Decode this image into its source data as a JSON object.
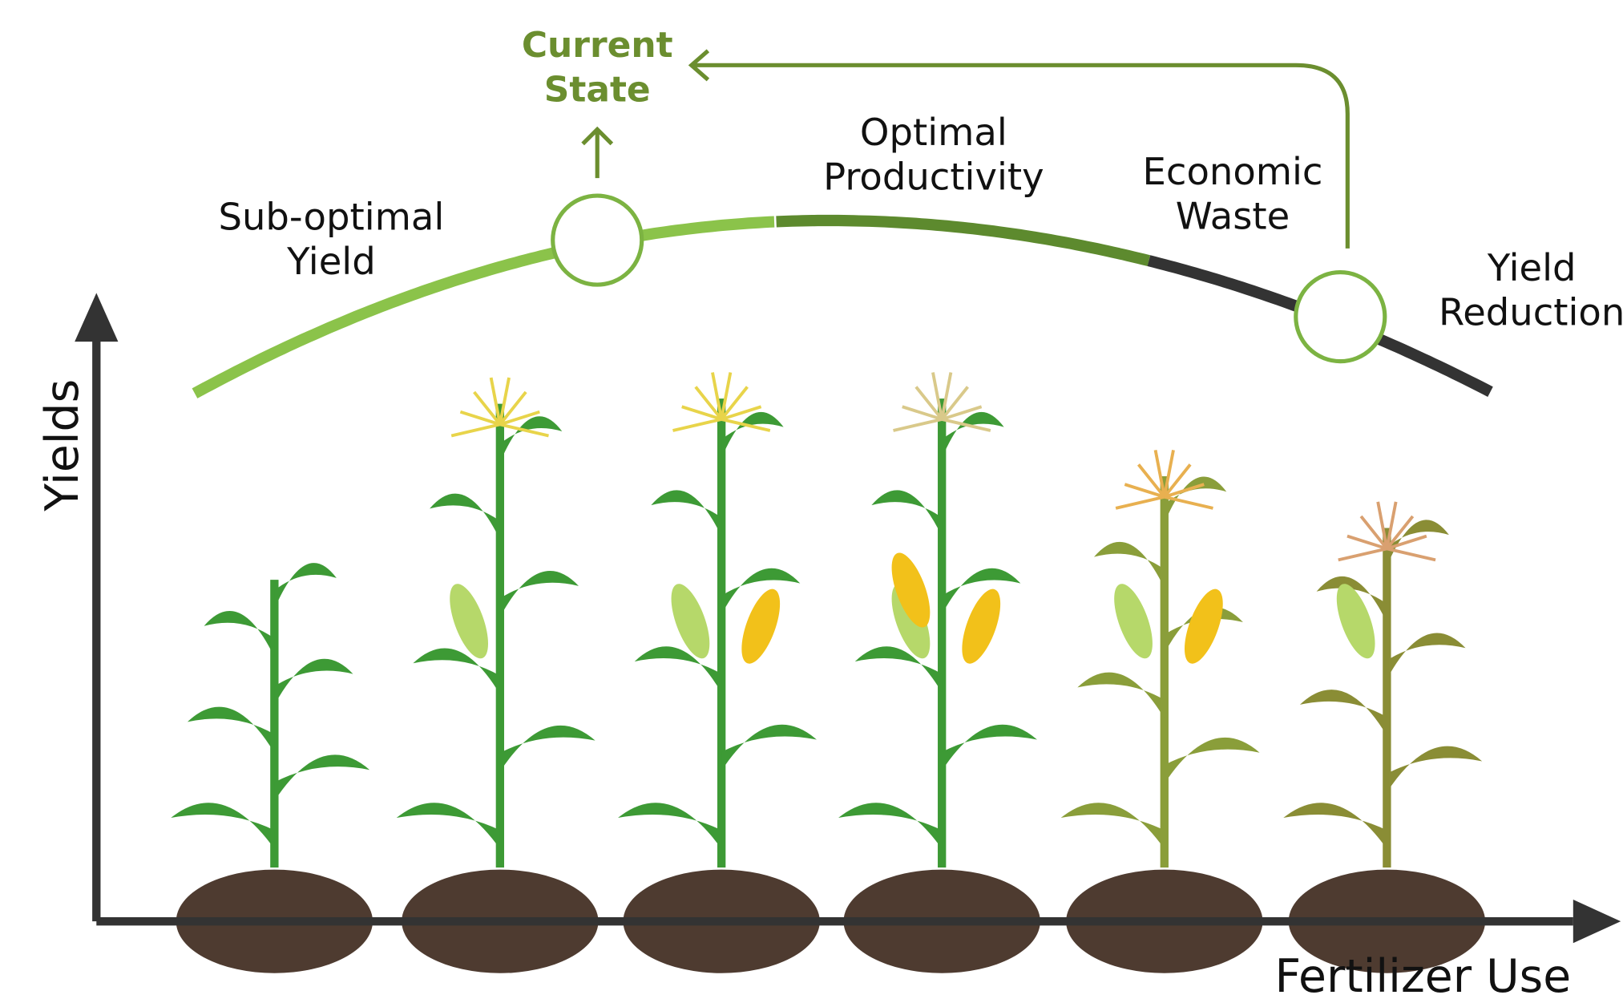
{
  "diagram": {
    "axes": {
      "y": "Yields",
      "x": "Fertilizer Use"
    },
    "current_state": {
      "lines": [
        "Current",
        "State"
      ]
    },
    "zones": [
      {
        "lines": [
          "Sub-optimal",
          "Yield"
        ]
      },
      {
        "lines": [
          "Optimal",
          "Productivity"
        ]
      },
      {
        "lines": [
          "Economic",
          "Waste"
        ]
      },
      {
        "lines": [
          "Yield",
          "Reduction"
        ]
      }
    ]
  }
}
